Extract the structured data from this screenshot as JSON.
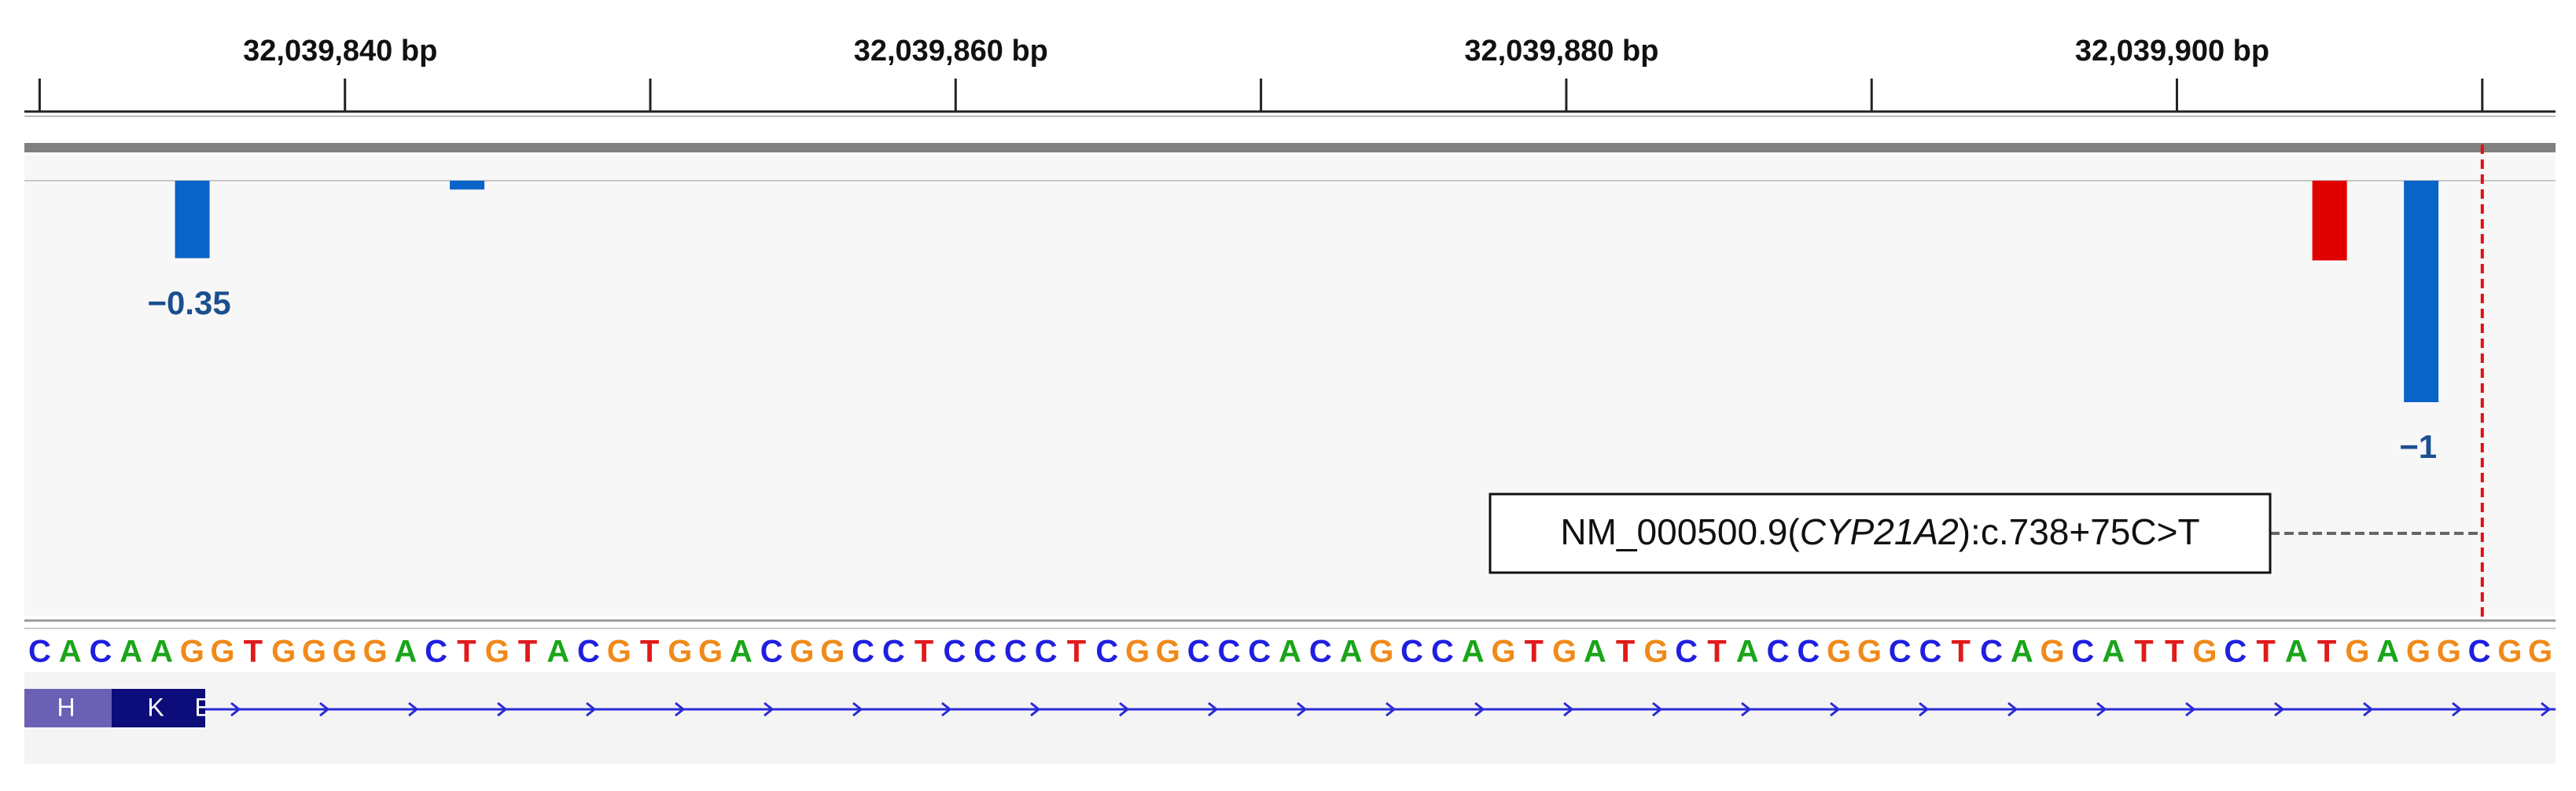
{
  "chart_data": {
    "type": "bar",
    "xlim": [
      32039829.5,
      32039912.4
    ],
    "xticks": [
      {
        "value": 32039840,
        "label": "32,039,840 bp"
      },
      {
        "value": 32039860,
        "label": "32,039,860 bp"
      },
      {
        "value": 32039880,
        "label": "32,039,880 bp"
      },
      {
        "value": 32039900,
        "label": "32,039,900 bp"
      }
    ],
    "minor_xticks": [
      32039830,
      32039850,
      32039870,
      32039890,
      32039910
    ],
    "x": [
      32039835,
      32039844,
      32039905,
      32039908
    ],
    "values": [
      -0.35,
      -0.04,
      -0.36,
      -1
    ],
    "value_labels": [
      "−0.35",
      null,
      null,
      "−1"
    ],
    "colors": [
      "#0a64c8",
      "#0a64c8",
      "#e00000",
      "#0a64c8"
    ],
    "variant_position": 32039910,
    "variant_label": {
      "prefix": "NM_000500.9(",
      "gene": "CYP21A2",
      "suffix": "):c.738+75C>T"
    },
    "sequence": "CACAAGGTGGGGACTGTACGTGGACGGCCTCCCCTCGGCCCACAGCCAGTGATGCTACCGGCCTCAGCATTGCTATGAGGCGG",
    "base_colors": {
      "A": "#1aa51a",
      "C": "#1f1fe0",
      "G": "#f08a1a",
      "T": "#e01a1a"
    },
    "exon_labels": [
      "H",
      "K",
      "E"
    ]
  }
}
